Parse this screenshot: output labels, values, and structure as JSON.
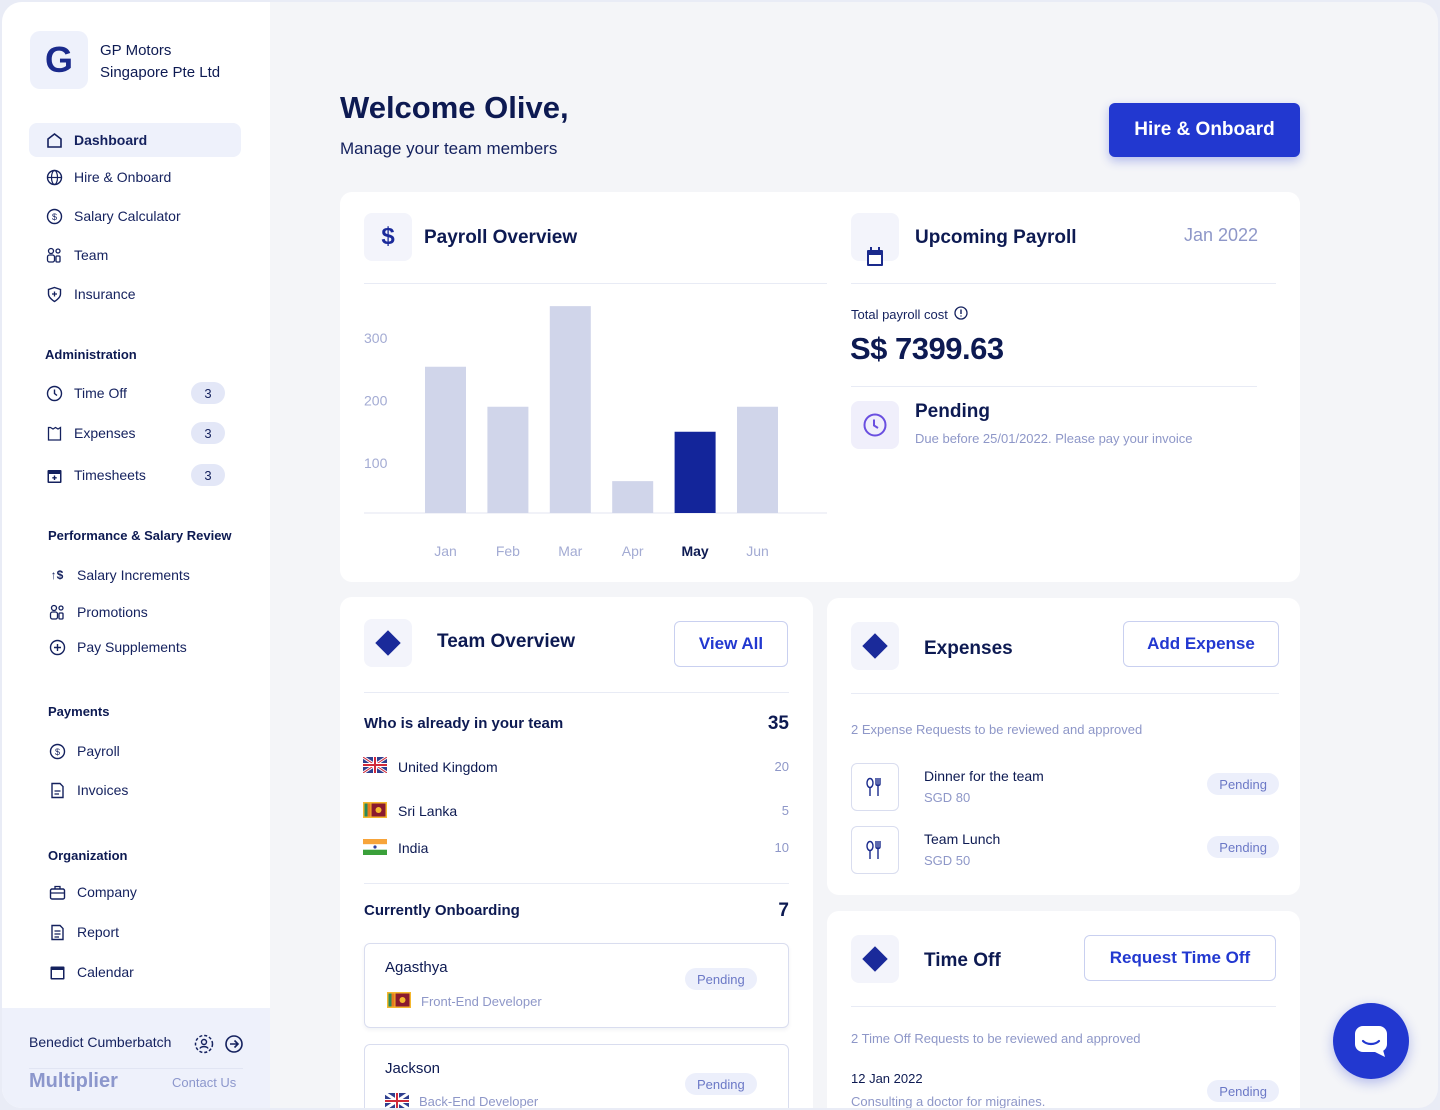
{
  "company": {
    "initial": "G",
    "line1": "GP Motors",
    "line2": "Singapore Pte Ltd"
  },
  "nav": [
    {
      "label": "Dashboard",
      "icon": "home-icon"
    },
    {
      "label": "Hire & Onboard",
      "icon": "globe-icon"
    },
    {
      "label": "Salary Calculator",
      "icon": "dollar-circle-icon"
    },
    {
      "label": "Team",
      "icon": "team-icon"
    },
    {
      "label": "Insurance",
      "icon": "shield-icon"
    }
  ],
  "administration": {
    "title": "Administration",
    "items": [
      {
        "label": "Time Off",
        "badge": "3"
      },
      {
        "label": "Expenses",
        "badge": "3"
      },
      {
        "label": "Timesheets",
        "badge": "3"
      }
    ]
  },
  "performance": {
    "title": "Performance & Salary Review",
    "items": [
      {
        "label": "Salary Increments"
      },
      {
        "label": "Promotions"
      },
      {
        "label": "Pay Supplements"
      }
    ]
  },
  "payments": {
    "title": "Payments",
    "items": [
      {
        "label": "Payroll"
      },
      {
        "label": "Invoices"
      }
    ]
  },
  "organization": {
    "title": "Organization",
    "items": [
      {
        "label": "Company"
      },
      {
        "label": "Report"
      },
      {
        "label": "Calendar"
      }
    ]
  },
  "footer": {
    "user": "Benedict Cumberbatch",
    "brand": "Multiplier",
    "contact": "Contact Us"
  },
  "header": {
    "title": "Welcome Olive,",
    "subtitle": "Manage your team members",
    "cta": "Hire & Onboard"
  },
  "payroll_overview": {
    "title": "Payroll Overview"
  },
  "chart_data": {
    "type": "bar",
    "title": "Payroll Overview",
    "categories": [
      "Jan",
      "Feb",
      "Mar",
      "Apr",
      "May",
      "Jun"
    ],
    "values": [
      254,
      190,
      351,
      71,
      150,
      190
    ],
    "highlight": "May",
    "yticks": [
      100,
      200,
      300
    ],
    "ylim": [
      0,
      380
    ],
    "colors": {
      "bar": "#d0d5ea",
      "highlight": "#13259a"
    }
  },
  "upcoming_payroll": {
    "title": "Upcoming Payroll",
    "period": "Jan 2022",
    "cost_label": "Total payroll cost",
    "cost": "S$ 7399.63",
    "status": "Pending",
    "due": "Due before 25/01/2022. Please pay your invoice"
  },
  "team": {
    "title": "Team Overview",
    "view_all": "View All",
    "in_team_label": "Who is already in your team",
    "in_team_count": "35",
    "countries": [
      {
        "name": "United Kingdom",
        "count": "20"
      },
      {
        "name": "Sri Lanka",
        "count": "5"
      },
      {
        "name": "India",
        "count": "10"
      }
    ],
    "onboarding_label": "Currently Onboarding",
    "onboarding_count": "7",
    "onboarding": [
      {
        "name": "Agasthya",
        "role": "Front-End Developer",
        "status": "Pending"
      },
      {
        "name": "Jackson",
        "role": "Back-End Developer",
        "status": "Pending"
      }
    ]
  },
  "expenses": {
    "title": "Expenses",
    "add": "Add Expense",
    "summary": "2 Expense Requests to be reviewed and approved",
    "items": [
      {
        "title": "Dinner for the team",
        "amount": "SGD 80",
        "status": "Pending"
      },
      {
        "title": "Team Lunch",
        "amount": "SGD 50",
        "status": "Pending"
      }
    ]
  },
  "timeoff": {
    "title": "Time Off",
    "request": "Request Time Off",
    "summary": "2 Time Off Requests to be reviewed and approved",
    "items": [
      {
        "date": "12 Jan 2022",
        "reason": "Consulting a doctor for migraines.",
        "status": "Pending"
      }
    ]
  }
}
